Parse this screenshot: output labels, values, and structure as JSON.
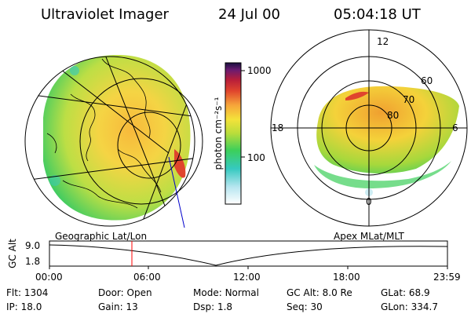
{
  "header": {
    "instrument": "Ultraviolet Imager",
    "date": "24 Jul 00",
    "time": "05:04:18 UT"
  },
  "colorbar": {
    "ticks": [
      "1000",
      "100"
    ],
    "unit_label": "photon cm⁻²s⁻¹"
  },
  "panels": {
    "left_label": "Geographic Lat/Lon",
    "right_label": "Apex MLat/MLT"
  },
  "polar": {
    "mlt_labels": [
      "12",
      "18",
      "6",
      "0"
    ],
    "mlat_labels": [
      "60",
      "70",
      "80"
    ]
  },
  "timeline": {
    "axis_label": "GC Alt",
    "y_ticks": [
      "9.0",
      "1.8"
    ],
    "x_ticks": [
      "00:00",
      "06:00",
      "12:00",
      "18:00",
      "23:59"
    ],
    "marker_time": "05:04"
  },
  "info": {
    "row1": [
      {
        "label": "Flt:",
        "value": "1304"
      },
      {
        "label": "Door:",
        "value": "Open"
      },
      {
        "label": "Mode:",
        "value": "Normal"
      },
      {
        "label": "GC Alt:",
        "value": "8.0 Re"
      },
      {
        "label": "GLat:",
        "value": "68.9"
      }
    ],
    "row2": [
      {
        "label": "IP:",
        "value": "18.0"
      },
      {
        "label": "Gain:",
        "value": "13"
      },
      {
        "label": "Dsp:",
        "value": "1.8"
      },
      {
        "label": "Seq:",
        "value": "30"
      },
      {
        "label": "GLon:",
        "value": "334.7"
      }
    ]
  },
  "colors": {
    "marker": "#ff0000",
    "meridian": "#0000cc"
  }
}
